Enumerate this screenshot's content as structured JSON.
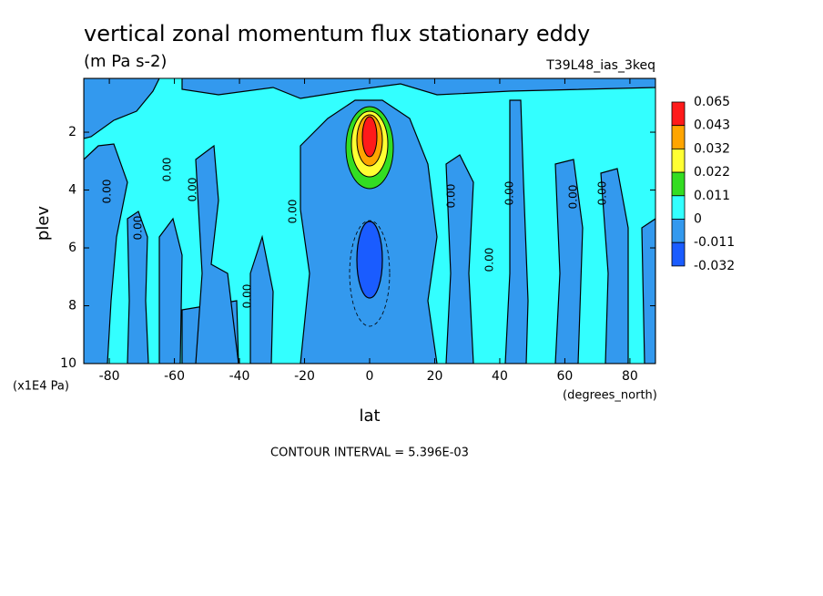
{
  "chart_data": {
    "type": "contour",
    "title": "vertical zonal momentum flux stationary eddy",
    "subtitle": "(m Pa s-2)",
    "dataset": "T39L48_ias_3keq",
    "x_label": "lat",
    "x_units": "(degrees_north)",
    "y_label": "plev",
    "y_units": "(x1E4 Pa)",
    "xlim": [
      -87.86,
      87.86
    ],
    "xticks": [
      -80,
      -60,
      -40,
      -20,
      0,
      20,
      40,
      60,
      80
    ],
    "ylim": [
      10,
      0.14
    ],
    "yticks": [
      2,
      4,
      6,
      8,
      10
    ],
    "colorbar": {
      "levels": [
        0.065,
        0.043,
        0.032,
        0.022,
        0.011,
        0,
        -0.011,
        -0.032
      ],
      "colors": [
        "#ff1a1a",
        "#ffa500",
        "#ffff33",
        "#33dd22",
        "#33ffff",
        "#3399ee",
        "#1a5cff"
      ]
    },
    "contour_labels": [
      "0.00",
      "0.00",
      "0.00",
      "0.00",
      "0.00",
      "0.00",
      "0.00",
      "0.00",
      "0.00",
      "0.00",
      "0.00"
    ],
    "footer": "CONTOUR INTERVAL = 5.396E-03"
  }
}
